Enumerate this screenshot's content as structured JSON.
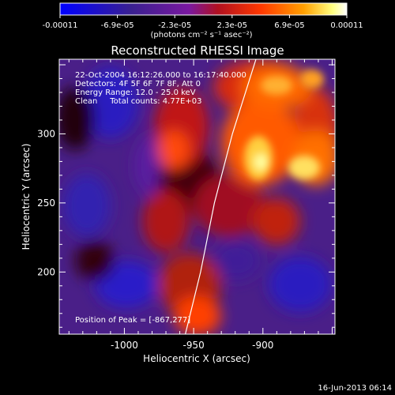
{
  "colorbar": {
    "ticks": [
      "-0.00011",
      "-6.9e-05",
      "-2.3e-05",
      "2.3e-05",
      "6.9e-05",
      "0.00011"
    ],
    "unit_label": "(photons cm⁻² s⁻¹ asec⁻²)",
    "range": [
      -0.00011,
      0.00011
    ]
  },
  "title": "Reconstructed RHESSI Image",
  "annotations": {
    "time_range": "22-Oct-2004 16:12:26.000 to 16:17:40.000",
    "detectors": "Detectors: 4F 5F 6F 7F 8F, Att 0",
    "energy_range": "Energy Range: 12.0 - 25.0 keV",
    "clean_counts": "Clean     Total counts: 4.77E+03",
    "peak_position": "Position of Peak = [-867,277]"
  },
  "axes": {
    "xlabel": "Heliocentric X (arcsec)",
    "ylabel": "Heliocentric Y (arcsec)",
    "xticks": [
      {
        "value": -1000,
        "label": "-1000"
      },
      {
        "value": -950,
        "label": "-950"
      },
      {
        "value": -900,
        "label": "-900"
      }
    ],
    "yticks": [
      {
        "value": 200,
        "label": "200"
      },
      {
        "value": 250,
        "label": "250"
      },
      {
        "value": 300,
        "label": "300"
      }
    ],
    "xlim": [
      -1047,
      -848
    ],
    "ylim": [
      155,
      354
    ]
  },
  "limb": [
    [
      -956,
      155
    ],
    [
      -945,
      200
    ],
    [
      -935,
      250
    ],
    [
      -922,
      300
    ],
    [
      -905,
      354
    ]
  ],
  "footer_date": "16-Jun-2013 06:14",
  "colors": {
    "background": "#000000",
    "text": "#ffffff",
    "colormap": [
      "#0000ff",
      "#3b1f8a",
      "#6a1aa8",
      "#b01a28",
      "#ff3000",
      "#ff9a00",
      "#ffff60",
      "#ffffff"
    ]
  }
}
